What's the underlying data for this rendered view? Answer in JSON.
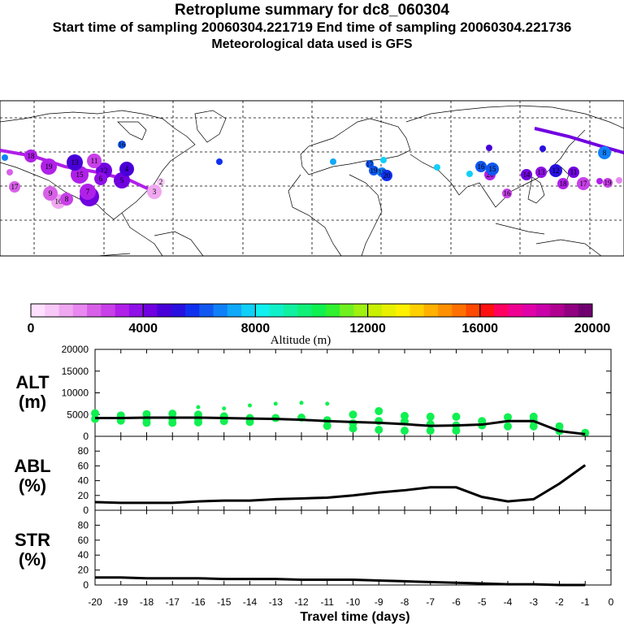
{
  "header": {
    "title": "Retroplume summary for dc8_060304",
    "times": "Start time of sampling 20060304.221719     End time of sampling 20060304.221736",
    "met": "Meteorological data used is GFS"
  },
  "colorbar": {
    "label": "Altitude (m)",
    "ticks": [
      "0",
      "4000",
      "8000",
      "12000",
      "16000",
      "20000"
    ],
    "colors": [
      "#ffe0ff",
      "#f8c8f8",
      "#f0a8f0",
      "#e888f0",
      "#d860e8",
      "#c840e8",
      "#b020e8",
      "#9010e8",
      "#7000e0",
      "#4800d8",
      "#2810e0",
      "#1030f0",
      "#1058f0",
      "#1080f8",
      "#10a8f8",
      "#10d0f8",
      "#10f0f0",
      "#10f0c8",
      "#10f0a0",
      "#10f078",
      "#10f050",
      "#30f030",
      "#70f020",
      "#a0f010",
      "#c8f000",
      "#e8f000",
      "#fff000",
      "#ffd000",
      "#ffb000",
      "#ff9000",
      "#ff7000",
      "#ff4800",
      "#ff1010",
      "#ff0060",
      "#f00090",
      "#e000a8",
      "#c800a8",
      "#b00090",
      "#900080",
      "#700070"
    ]
  },
  "map_labels": [
    {
      "t": "16",
      "c": "#1058f0"
    },
    {
      "t": "17",
      "c": "#d860e8"
    },
    {
      "t": "18",
      "c": "#b020e8"
    },
    {
      "t": "19",
      "c": "#b020e8"
    },
    {
      "t": "15",
      "c": "#b020e8"
    },
    {
      "t": "14",
      "c": "#7000e0"
    },
    {
      "t": "13",
      "c": "#4800d8"
    },
    {
      "t": "12",
      "c": "#7000e0"
    },
    {
      "t": "11",
      "c": "#c840e8"
    },
    {
      "t": "10",
      "c": "#f0a8f0"
    },
    {
      "t": "9",
      "c": "#d860e8"
    },
    {
      "t": "8",
      "c": "#c840e8"
    },
    {
      "t": "7",
      "c": "#b020e8"
    },
    {
      "t": "6",
      "c": "#9010e8"
    },
    {
      "t": "5",
      "c": "#7000e0"
    },
    {
      "t": "4",
      "c": "#4800d8"
    },
    {
      "t": "3",
      "c": "#f0a8f0"
    },
    {
      "t": "2",
      "c": "#f8c8f8"
    },
    {
      "t": "17",
      "c": "#1058f0"
    },
    {
      "t": "18",
      "c": "#1080f8"
    },
    {
      "t": "19",
      "c": "#1058f0"
    },
    {
      "t": "20",
      "c": "#1030f0"
    },
    {
      "t": "16",
      "c": "#1058f0"
    },
    {
      "t": "20",
      "c": "#b020e8"
    },
    {
      "t": "15",
      "c": "#1058f0"
    },
    {
      "t": "14",
      "c": "#7000e0"
    },
    {
      "t": "13",
      "c": "#9010e8"
    },
    {
      "t": "12",
      "c": "#2810e0"
    },
    {
      "t": "11",
      "c": "#7000e0"
    },
    {
      "t": "16",
      "c": "#c840e8"
    },
    {
      "t": "17",
      "c": "#c840e8"
    },
    {
      "t": "18",
      "c": "#b020e8"
    },
    {
      "t": "19",
      "c": "#c840e8"
    },
    {
      "t": "8",
      "c": "#1080f8"
    }
  ],
  "chart_data": [
    {
      "type": "scatter",
      "panel_label": [
        "ALT",
        "(m)"
      ],
      "ylim": [
        0,
        20000
      ],
      "yticks": [
        "0",
        "5000",
        "10000",
        "15000",
        "20000"
      ],
      "x": [
        -20,
        -19,
        -18,
        -17,
        -16,
        -15,
        -14,
        -13,
        -12,
        -11,
        -10,
        -9,
        -8,
        -7,
        -6,
        -5,
        -4,
        -3,
        -2,
        -1
      ],
      "median": [
        4200,
        4200,
        4300,
        4300,
        4300,
        4200,
        4100,
        4000,
        3800,
        3500,
        3300,
        3100,
        2800,
        2400,
        2500,
        2700,
        3500,
        3500,
        1200,
        500
      ],
      "points": [
        {
          "x": -20,
          "y": 5300
        },
        {
          "x": -20,
          "y": 4000
        },
        {
          "x": -19,
          "y": 4800
        },
        {
          "x": -19,
          "y": 3600
        },
        {
          "x": -18,
          "y": 5100
        },
        {
          "x": -18,
          "y": 4000
        },
        {
          "x": -18,
          "y": 3100
        },
        {
          "x": -17,
          "y": 5200
        },
        {
          "x": -17,
          "y": 4100
        },
        {
          "x": -17,
          "y": 3100
        },
        {
          "x": -16,
          "y": 6700
        },
        {
          "x": -16,
          "y": 5000
        },
        {
          "x": -16,
          "y": 4000
        },
        {
          "x": -16,
          "y": 3200
        },
        {
          "x": -15,
          "y": 6400
        },
        {
          "x": -15,
          "y": 4600
        },
        {
          "x": -15,
          "y": 3500
        },
        {
          "x": -14,
          "y": 7100
        },
        {
          "x": -14,
          "y": 4200
        },
        {
          "x": -14,
          "y": 3300
        },
        {
          "x": -13,
          "y": 7500
        },
        {
          "x": -13,
          "y": 4200
        },
        {
          "x": -12,
          "y": 7700
        },
        {
          "x": -12,
          "y": 4300
        },
        {
          "x": -11,
          "y": 7500
        },
        {
          "x": -11,
          "y": 3700
        },
        {
          "x": -11,
          "y": 2400
        },
        {
          "x": -10,
          "y": 5000
        },
        {
          "x": -10,
          "y": 3000
        },
        {
          "x": -10,
          "y": 1800
        },
        {
          "x": -9,
          "y": 5800
        },
        {
          "x": -9,
          "y": 3500
        },
        {
          "x": -9,
          "y": 1500
        },
        {
          "x": -8,
          "y": 4700
        },
        {
          "x": -8,
          "y": 3400
        },
        {
          "x": -8,
          "y": 1300
        },
        {
          "x": -7,
          "y": 4500
        },
        {
          "x": -7,
          "y": 2800
        },
        {
          "x": -7,
          "y": 1300
        },
        {
          "x": -6,
          "y": 4500
        },
        {
          "x": -6,
          "y": 2500
        },
        {
          "x": -6,
          "y": 1300
        },
        {
          "x": -5,
          "y": 3500
        },
        {
          "x": -5,
          "y": 2500
        },
        {
          "x": -4,
          "y": 4400
        },
        {
          "x": -4,
          "y": 2300
        },
        {
          "x": -3,
          "y": 4500
        },
        {
          "x": -3,
          "y": 3600
        },
        {
          "x": -3,
          "y": 2300
        },
        {
          "x": -2,
          "y": 2300
        },
        {
          "x": -2,
          "y": 1200
        },
        {
          "x": -1,
          "y": 800
        }
      ],
      "point_color": "#10f050"
    },
    {
      "type": "line",
      "panel_label": [
        "ABL",
        "(%)"
      ],
      "ylim": [
        0,
        100
      ],
      "yticks": [
        "0",
        "20",
        "40",
        "60",
        "80"
      ],
      "x": [
        -20,
        -19,
        -18,
        -17,
        -16,
        -15,
        -14,
        -13,
        -12,
        -11,
        -10,
        -9,
        -8,
        -7,
        -6,
        -5,
        -4,
        -3,
        -2,
        -1
      ],
      "values": [
        11,
        10,
        10,
        10,
        12,
        13,
        13,
        15,
        16,
        17,
        20,
        24,
        27,
        31,
        31,
        18,
        12,
        15,
        36,
        61
      ]
    },
    {
      "type": "line",
      "panel_label": [
        "STR",
        "(%)"
      ],
      "ylim": [
        0,
        100
      ],
      "yticks": [
        "0",
        "20",
        "40",
        "60",
        "80"
      ],
      "x": [
        -20,
        -19,
        -18,
        -17,
        -16,
        -15,
        -14,
        -13,
        -12,
        -11,
        -10,
        -9,
        -8,
        -7,
        -6,
        -5,
        -4,
        -3,
        -2,
        -1
      ],
      "values": [
        10,
        10,
        9,
        9,
        9,
        8,
        8,
        8,
        7,
        7,
        7,
        6,
        5,
        4,
        3,
        2,
        1,
        1,
        0,
        0
      ]
    }
  ],
  "x_axis": {
    "label": "Travel time (days)",
    "ticks": [
      "-20",
      "-19",
      "-18",
      "-17",
      "-16",
      "-15",
      "-14",
      "-13",
      "-12",
      "-11",
      "-10",
      "-9",
      "-8",
      "-7",
      "-6",
      "-5",
      "-4",
      "-3",
      "-2",
      "-1",
      "0"
    ]
  }
}
